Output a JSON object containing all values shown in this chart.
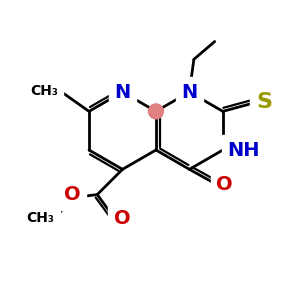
{
  "bg_color": "#ffffff",
  "bond_color": "#000000",
  "n_color": "#0000cc",
  "o_color": "#cc0000",
  "s_color": "#999900",
  "highlight_color": "#e08080",
  "font_size_atom": 14,
  "font_size_small": 11,
  "figsize": [
    3.0,
    3.0
  ],
  "dpi": 100,
  "lw": 2.0,
  "xlim": [
    0,
    10
  ],
  "ylim": [
    0,
    10
  ]
}
